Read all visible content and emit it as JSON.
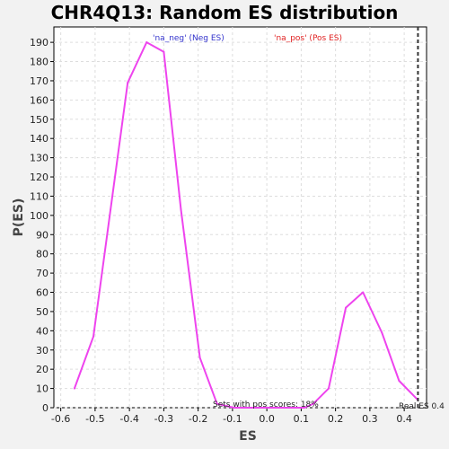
{
  "chart_data": {
    "type": "line",
    "title": "CHR4Q13: Random ES distribution",
    "xlabel": "ES",
    "ylabel": "P(ES)",
    "xlim": [
      -0.62,
      0.465
    ],
    "ylim": [
      0,
      198
    ],
    "x_ticks": [
      -0.6,
      -0.5,
      -0.4,
      -0.3,
      -0.2,
      -0.1,
      0.0,
      0.1,
      0.2,
      0.3,
      0.4
    ],
    "x_tick_labels": [
      "-0.6",
      "-0.5",
      "-0.4",
      "-0.3",
      "-0.2",
      "-0.1",
      "0.0",
      "0.1",
      "0.2",
      "0.3",
      "0.4"
    ],
    "y_ticks": [
      0,
      10,
      20,
      30,
      40,
      50,
      60,
      70,
      80,
      90,
      100,
      110,
      120,
      130,
      140,
      150,
      160,
      170,
      180,
      190
    ],
    "grid": true,
    "legend": [
      {
        "label": "'na_neg' (Neg ES)",
        "color": "#3333cc"
      },
      {
        "label": "'na_pos' (Pos ES)",
        "color": "#e02020"
      }
    ],
    "series": [
      {
        "color": "#ee44ee",
        "x": [
          -0.56,
          -0.505,
          -0.455,
          -0.405,
          -0.35,
          -0.3,
          -0.25,
          -0.195,
          -0.145,
          -0.095,
          -0.04,
          0.01,
          0.06,
          0.11,
          0.135,
          0.18,
          0.23,
          0.28,
          0.335,
          0.385,
          0.44
        ],
        "y": [
          10,
          37,
          103,
          169,
          190,
          185,
          103,
          26,
          2,
          0,
          0,
          0,
          0,
          0,
          2,
          10,
          52,
          60,
          39,
          14,
          4
        ]
      }
    ],
    "real_es": 0.44,
    "annotations": {
      "pos_scores": "Sets with pos scores: 18%",
      "real_es": "Real ES 0.4"
    }
  },
  "colors": {
    "background": "#f2f2f2",
    "plot_background": "#ffffff",
    "grid": "#dddddd",
    "line": "#ee44ee",
    "real_es_line": "#333333"
  }
}
